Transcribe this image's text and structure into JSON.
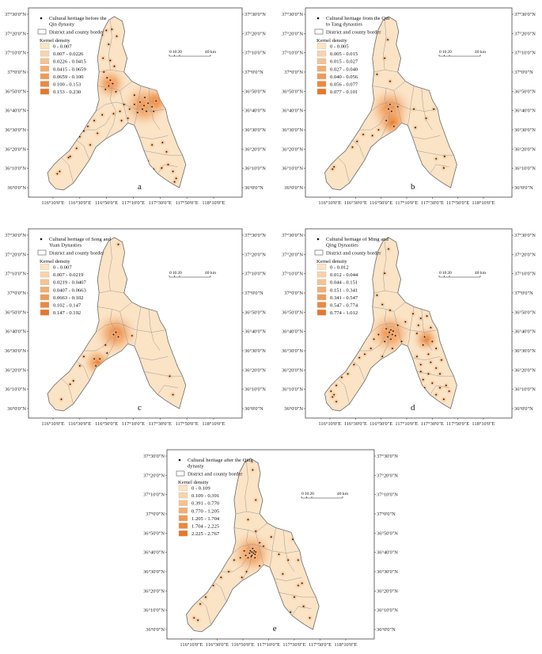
{
  "figure": {
    "panels": [
      {
        "label": "a",
        "title": "Cultural heritage before the Qin dynasty",
        "title_lines": [
          "Cultural heritage before the",
          "Qin dynasty"
        ],
        "border_label": "District and county border",
        "density_label": "Kernel density",
        "classes": [
          "0 - 0.007",
          "0.007 - 0.0226",
          "0.0226 - 0.0415",
          "0.0415 - 0.0659",
          "0.0659 - 0.100",
          "0.100 - 0.153",
          "0.153 - 0.230"
        ],
        "scale_labels": [
          "0",
          "10",
          "20",
          "40 km"
        ],
        "sites": [
          [
            116.78,
            37.32
          ],
          [
            116.83,
            37.36
          ],
          [
            116.9,
            37.37
          ],
          [
            116.96,
            37.31
          ],
          [
            116.86,
            37.24
          ],
          [
            116.79,
            37.12
          ],
          [
            116.88,
            37.1
          ],
          [
            116.93,
            37.05
          ],
          [
            116.8,
            37.0
          ],
          [
            116.84,
            36.95
          ],
          [
            116.88,
            36.93
          ],
          [
            116.91,
            36.9
          ],
          [
            116.86,
            36.88
          ],
          [
            116.82,
            36.85
          ],
          [
            116.95,
            36.83
          ],
          [
            116.72,
            36.78
          ],
          [
            117.05,
            36.72
          ],
          [
            117.12,
            36.68
          ],
          [
            117.18,
            36.72
          ],
          [
            117.25,
            36.74
          ],
          [
            117.3,
            36.71
          ],
          [
            117.35,
            36.73
          ],
          [
            117.28,
            36.68
          ],
          [
            117.4,
            36.7
          ],
          [
            117.42,
            36.66
          ],
          [
            117.22,
            36.65
          ],
          [
            117.33,
            36.66
          ],
          [
            117.45,
            36.75
          ],
          [
            117.31,
            36.78
          ],
          [
            117.18,
            36.8
          ],
          [
            117.0,
            36.66
          ],
          [
            116.92,
            36.64
          ],
          [
            116.78,
            36.63
          ],
          [
            116.68,
            36.58
          ],
          [
            116.6,
            36.53
          ],
          [
            116.55,
            36.49
          ],
          [
            116.5,
            36.44
          ],
          [
            116.46,
            36.34
          ],
          [
            116.38,
            36.27
          ],
          [
            116.36,
            36.26
          ],
          [
            116.63,
            36.37
          ],
          [
            116.72,
            36.47
          ],
          [
            116.22,
            36.12
          ],
          [
            116.25,
            36.14
          ],
          [
            117.26,
            36.34
          ],
          [
            117.4,
            36.37
          ],
          [
            117.58,
            36.31
          ],
          [
            117.53,
            36.39
          ],
          [
            117.6,
            36.2
          ],
          [
            117.52,
            36.17
          ],
          [
            117.42,
            36.16
          ],
          [
            117.66,
            36.14
          ],
          [
            117.7,
            36.08
          ],
          [
            117.68,
            36.05
          ],
          [
            117.35,
            36.23
          ],
          [
            117.1,
            36.6
          ],
          [
            117.02,
            36.58
          ]
        ]
      },
      {
        "label": "b",
        "title": "Cultural heritage from the Qin to Tang dynasties",
        "title_lines": [
          "Cultural heritage from the Qin",
          "to Tang dynasties"
        ],
        "border_label": "District and county border",
        "density_label": "Kernel density",
        "classes": [
          "0 - 0.005",
          "0.005 - 0.015",
          "0.015 - 0.027",
          "0.027 - 0.040",
          "0.040 - 0.056",
          "0.056 - 0.077",
          "0.077 - 0.101"
        ],
        "scale_labels": [
          "0",
          "10",
          "20",
          "40 km"
        ],
        "sites": [
          [
            116.92,
            37.28
          ],
          [
            116.88,
            37.12
          ],
          [
            116.78,
            36.98
          ],
          [
            116.95,
            36.92
          ],
          [
            116.95,
            36.72
          ],
          [
            116.93,
            36.68
          ],
          [
            116.97,
            36.66
          ],
          [
            116.9,
            36.58
          ],
          [
            117.0,
            36.53
          ],
          [
            116.8,
            36.5
          ],
          [
            116.72,
            36.45
          ],
          [
            116.6,
            36.46
          ],
          [
            116.52,
            36.4
          ],
          [
            116.46,
            36.35
          ],
          [
            116.82,
            36.37
          ],
          [
            116.22,
            36.18
          ],
          [
            116.2,
            36.16
          ],
          [
            117.26,
            36.68
          ],
          [
            117.28,
            36.52
          ],
          [
            117.42,
            36.6
          ],
          [
            117.52,
            36.68
          ],
          [
            117.55,
            36.25
          ],
          [
            117.66,
            36.27
          ],
          [
            117.65,
            36.17
          ],
          [
            117.05,
            36.7
          ]
        ]
      },
      {
        "label": "c",
        "title": "Cultural heritage of Song and Yuan Dynasties",
        "title_lines": [
          "Cultural heritage of Song and",
          "Yuan Dynasties"
        ],
        "border_label": "District and county border",
        "density_label": "Kernel density",
        "classes": [
          "0 - 0.007",
          "0.007 - 0.0219",
          "0.0219 - 0.0407",
          "0.0407 - 0.0663",
          "0.0663 - 0.102",
          "0.102 - 0.147",
          "0.147 - 0.192"
        ],
        "scale_labels": [
          "0",
          "10",
          "20",
          "40 km"
        ],
        "sites": [
          [
            116.98,
            37.42
          ],
          [
            116.95,
            36.66
          ],
          [
            116.92,
            36.64
          ],
          [
            116.98,
            36.62
          ],
          [
            116.84,
            36.48
          ],
          [
            116.75,
            36.43
          ],
          [
            116.7,
            36.37
          ],
          [
            116.68,
            36.43
          ],
          [
            116.5,
            36.37
          ],
          [
            116.42,
            36.24
          ],
          [
            116.38,
            36.21
          ],
          [
            116.27,
            36.08
          ],
          [
            116.55,
            36.45
          ],
          [
            116.82,
            36.55
          ],
          [
            117.15,
            36.63
          ],
          [
            117.62,
            36.28
          ],
          [
            117.66,
            36.12
          ],
          [
            117.78,
            36.08
          ],
          [
            117.8,
            36.3
          ],
          [
            117.05,
            36.48
          ]
        ]
      },
      {
        "label": "d",
        "title": "Cultural heritage of Ming and Qing Dynasties",
        "title_lines": [
          "Cultural heritage of Ming and",
          "Qing Dynasties"
        ],
        "border_label": "District and county border",
        "density_label": "Kernel density",
        "classes": [
          "0 - 0.012",
          "0.012 - 0.044",
          "0.044 - 0.151",
          "0.151 - 0.341",
          "0.341 - 0.547",
          "0.547 - 0.774",
          "0.774 - 1.012"
        ],
        "scale_labels": [
          "0",
          "10",
          "20",
          "40 km"
        ],
        "sites": [
          [
            116.93,
            37.38
          ],
          [
            116.88,
            37.17
          ],
          [
            116.78,
            36.98
          ],
          [
            116.85,
            36.9
          ],
          [
            116.95,
            36.85
          ],
          [
            116.96,
            36.68
          ],
          [
            116.94,
            36.66
          ],
          [
            116.98,
            36.64
          ],
          [
            116.92,
            36.62
          ],
          [
            116.99,
            36.67
          ],
          [
            116.9,
            36.69
          ],
          [
            117.02,
            36.63
          ],
          [
            116.96,
            36.6
          ],
          [
            116.88,
            36.58
          ],
          [
            116.8,
            36.64
          ],
          [
            116.74,
            36.6
          ],
          [
            116.7,
            36.52
          ],
          [
            116.62,
            36.47
          ],
          [
            116.55,
            36.44
          ],
          [
            116.48,
            36.38
          ],
          [
            116.4,
            36.3
          ],
          [
            116.32,
            36.27
          ],
          [
            116.25,
            36.2
          ],
          [
            116.22,
            36.12
          ],
          [
            116.2,
            36.1
          ],
          [
            116.18,
            36.15
          ],
          [
            116.25,
            36.06
          ],
          [
            116.85,
            36.45
          ],
          [
            116.78,
            36.38
          ],
          [
            116.98,
            36.52
          ],
          [
            117.1,
            36.58
          ],
          [
            117.05,
            36.72
          ],
          [
            117.15,
            36.75
          ],
          [
            117.25,
            36.82
          ],
          [
            117.32,
            36.72
          ],
          [
            117.35,
            36.78
          ],
          [
            117.43,
            36.8
          ],
          [
            117.48,
            36.7
          ],
          [
            117.3,
            36.65
          ],
          [
            117.4,
            36.62
          ],
          [
            117.5,
            36.58
          ],
          [
            117.55,
            36.52
          ],
          [
            117.38,
            36.55
          ],
          [
            117.45,
            36.47
          ],
          [
            117.3,
            36.45
          ],
          [
            117.35,
            36.38
          ],
          [
            117.48,
            36.4
          ],
          [
            117.55,
            36.35
          ],
          [
            117.6,
            36.3
          ],
          [
            117.45,
            36.3
          ],
          [
            117.38,
            36.25
          ],
          [
            117.5,
            36.22
          ],
          [
            117.6,
            36.18
          ],
          [
            117.68,
            36.2
          ],
          [
            117.72,
            36.15
          ],
          [
            117.55,
            36.12
          ],
          [
            117.65,
            36.08
          ],
          [
            117.4,
            36.18
          ],
          [
            117.35,
            36.32
          ],
          [
            117.62,
            36.42
          ]
        ]
      },
      {
        "label": "e",
        "title": "Cultural heritage after the Qing dynasty",
        "title_lines": [
          "Cultural heritage after the Qing",
          "dynasty"
        ],
        "border_label": "District and county border",
        "density_label": "Kernel density",
        "classes": [
          "0 - 0.109",
          "0.109 - 0.391",
          "0.391 - 0.770",
          "0.770 - 1.205",
          "1.205 - 1.704",
          "1.704 - 2.225",
          "2.225 - 2.767"
        ],
        "scale_labels": [
          "0",
          "10",
          "20",
          "40 km"
        ],
        "sites": [
          [
            116.96,
            37.38
          ],
          [
            117.0,
            37.12
          ],
          [
            116.9,
            36.95
          ],
          [
            116.95,
            36.67
          ],
          [
            116.97,
            36.66
          ],
          [
            116.99,
            36.65
          ],
          [
            116.93,
            36.68
          ],
          [
            116.95,
            36.64
          ],
          [
            116.98,
            36.68
          ],
          [
            116.92,
            36.66
          ],
          [
            117.0,
            36.67
          ],
          [
            116.94,
            36.63
          ],
          [
            116.9,
            36.62
          ],
          [
            116.96,
            36.7
          ],
          [
            116.99,
            36.62
          ],
          [
            116.87,
            36.64
          ],
          [
            116.85,
            36.68
          ],
          [
            116.8,
            36.62
          ],
          [
            116.72,
            36.6
          ],
          [
            116.65,
            36.5
          ],
          [
            116.55,
            36.45
          ],
          [
            116.45,
            36.38
          ],
          [
            116.35,
            36.28
          ],
          [
            116.28,
            36.22
          ],
          [
            116.2,
            36.1
          ],
          [
            116.25,
            36.08
          ],
          [
            116.88,
            36.5
          ],
          [
            117.05,
            36.55
          ],
          [
            117.1,
            36.72
          ],
          [
            117.2,
            36.8
          ],
          [
            117.3,
            36.65
          ],
          [
            117.42,
            36.6
          ],
          [
            117.55,
            36.6
          ],
          [
            117.6,
            36.4
          ],
          [
            117.5,
            36.28
          ],
          [
            117.62,
            36.2
          ],
          [
            117.7,
            36.1
          ],
          [
            117.45,
            36.15
          ],
          [
            117.35,
            36.48
          ],
          [
            117.05,
            36.75
          ],
          [
            117.25,
            36.4
          ],
          [
            116.82,
            36.45
          ],
          [
            117.0,
            36.85
          ],
          [
            117.15,
            36.3
          ],
          [
            117.52,
            36.05
          ],
          [
            117.55,
            36.38
          ],
          [
            117.48,
            36.78
          ]
        ]
      }
    ],
    "lon_ticks": [
      "116°10'0\"E",
      "116°30'0\"E",
      "116°50'0\"E",
      "117°10'0\"E",
      "117°30'0\"E",
      "117°50'0\"E",
      "118°10'0\"E"
    ],
    "lat_ticks": [
      "37°30'0\"N",
      "37°20'0\"N",
      "37°10'0\"N",
      "37°0'0\"N",
      "36°50'0\"N",
      "36°40'0\"N",
      "36°30'0\"N",
      "36°20'0\"N",
      "36°10'0\"N",
      "36°0'0\"N"
    ],
    "lon_values": [
      116.1667,
      116.5,
      116.8333,
      117.1667,
      117.5,
      117.8333,
      118.1667
    ],
    "lat_values": [
      37.5,
      37.3333,
      37.1667,
      37.0,
      36.8333,
      36.6667,
      36.5,
      36.3333,
      36.1667,
      36.0
    ],
    "hotspots": {
      "a": [
        [
          117.3,
          36.71,
          1.0
        ],
        [
          116.88,
          36.9,
          0.6
        ],
        [
          117.45,
          36.75,
          0.5
        ]
      ],
      "b": [
        [
          116.95,
          36.68,
          1.0
        ],
        [
          116.98,
          36.56,
          0.6
        ]
      ],
      "c": [
        [
          116.95,
          36.65,
          1.0
        ],
        [
          116.72,
          36.4,
          0.5
        ]
      ],
      "d": [
        [
          116.95,
          36.65,
          1.0
        ],
        [
          117.42,
          36.6,
          0.4
        ]
      ],
      "e": [
        [
          116.95,
          36.66,
          1.0
        ]
      ]
    },
    "colors": {
      "region_fill": "#fbe3c5",
      "border": "#9a9a9a",
      "outline": "#6b6b6b",
      "ramp": [
        "#fbe3c5",
        "#f8d3ad",
        "#f5c293",
        "#f2ad73",
        "#ef9a57",
        "#ec8840",
        "#e9762a"
      ],
      "site": "#111111"
    }
  }
}
